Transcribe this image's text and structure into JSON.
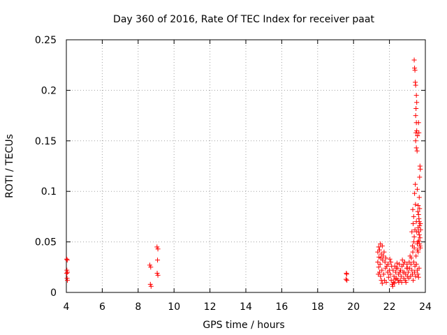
{
  "chart_data": {
    "type": "scatter",
    "title": "Day 360 of 2016, Rate Of TEC Index for receiver paat",
    "xlabel": "GPS time / hours",
    "ylabel": "ROTI / TECUs",
    "xlim": [
      4,
      24
    ],
    "ylim": [
      0,
      0.25
    ],
    "xticks": [
      "4",
      "6",
      "8",
      "10",
      "12",
      "14",
      "16",
      "18",
      "20",
      "22",
      "24"
    ],
    "yticks": [
      "0",
      "0.05",
      "0.1",
      "0.15",
      "0.2",
      "0.25"
    ],
    "grid": true,
    "marker": "+",
    "marker_color": "#ff0000",
    "series": [
      {
        "points": [
          [
            4.02,
            0.033
          ],
          [
            4.05,
            0.032
          ],
          [
            4.03,
            0.022
          ],
          [
            4.06,
            0.02
          ],
          [
            4.02,
            0.019
          ],
          [
            4.04,
            0.014
          ],
          [
            4.06,
            0.012
          ],
          [
            8.65,
            0.027
          ],
          [
            8.7,
            0.025
          ],
          [
            8.68,
            0.008
          ],
          [
            8.72,
            0.006
          ],
          [
            9.05,
            0.045
          ],
          [
            9.1,
            0.043
          ],
          [
            9.08,
            0.032
          ],
          [
            9.06,
            0.019
          ],
          [
            9.1,
            0.017
          ],
          [
            19.6,
            0.019
          ],
          [
            19.62,
            0.018
          ],
          [
            19.58,
            0.013
          ],
          [
            19.63,
            0.012
          ],
          [
            21.35,
            0.04
          ],
          [
            21.4,
            0.045
          ],
          [
            21.5,
            0.048
          ],
          [
            21.45,
            0.042
          ],
          [
            21.55,
            0.038
          ],
          [
            21.6,
            0.046
          ],
          [
            21.7,
            0.04
          ],
          [
            21.65,
            0.036
          ],
          [
            21.35,
            0.03
          ],
          [
            21.4,
            0.025
          ],
          [
            21.45,
            0.02
          ],
          [
            21.5,
            0.016
          ],
          [
            21.55,
            0.012
          ],
          [
            21.6,
            0.009
          ],
          [
            21.38,
            0.018
          ],
          [
            21.48,
            0.028
          ],
          [
            21.58,
            0.022
          ],
          [
            21.68,
            0.018
          ],
          [
            21.75,
            0.03
          ],
          [
            21.8,
            0.034
          ],
          [
            21.85,
            0.026
          ],
          [
            21.9,
            0.02
          ],
          [
            21.95,
            0.015
          ],
          [
            22.0,
            0.022
          ],
          [
            21.72,
            0.012
          ],
          [
            21.82,
            0.01
          ],
          [
            21.92,
            0.028
          ],
          [
            22.02,
            0.033
          ],
          [
            21.62,
            0.032
          ],
          [
            21.52,
            0.034
          ],
          [
            21.42,
            0.035
          ],
          [
            21.78,
            0.024
          ],
          [
            22.05,
            0.018
          ],
          [
            22.1,
            0.012
          ],
          [
            22.15,
            0.008
          ],
          [
            22.2,
            0.022
          ],
          [
            22.25,
            0.016
          ],
          [
            22.3,
            0.026
          ],
          [
            22.35,
            0.02
          ],
          [
            22.4,
            0.014
          ],
          [
            22.45,
            0.024
          ],
          [
            22.5,
            0.018
          ],
          [
            22.55,
            0.028
          ],
          [
            22.6,
            0.012
          ],
          [
            22.12,
            0.026
          ],
          [
            22.22,
            0.01
          ],
          [
            22.32,
            0.013
          ],
          [
            22.42,
            0.029
          ],
          [
            22.52,
            0.01
          ],
          [
            22.62,
            0.022
          ],
          [
            22.18,
            0.006
          ],
          [
            22.28,
            0.009
          ],
          [
            22.38,
            0.024
          ],
          [
            22.48,
            0.012
          ],
          [
            22.58,
            0.02
          ],
          [
            22.08,
            0.03
          ],
          [
            22.65,
            0.016
          ],
          [
            22.7,
            0.026
          ],
          [
            22.75,
            0.02
          ],
          [
            22.8,
            0.014
          ],
          [
            22.85,
            0.03
          ],
          [
            22.9,
            0.018
          ],
          [
            22.95,
            0.024
          ],
          [
            23.0,
            0.016
          ],
          [
            22.68,
            0.01
          ],
          [
            22.78,
            0.028
          ],
          [
            22.88,
            0.012
          ],
          [
            22.98,
            0.028
          ],
          [
            22.72,
            0.032
          ],
          [
            22.82,
            0.02
          ],
          [
            22.92,
            0.01
          ],
          [
            23.02,
            0.024
          ],
          [
            23.05,
            0.02
          ],
          [
            23.1,
            0.03
          ],
          [
            23.15,
            0.036
          ],
          [
            23.2,
            0.028
          ],
          [
            23.25,
            0.022
          ],
          [
            23.3,
            0.04
          ],
          [
            23.08,
            0.014
          ],
          [
            23.12,
            0.024
          ],
          [
            23.18,
            0.016
          ],
          [
            23.22,
            0.034
          ],
          [
            23.28,
            0.018
          ],
          [
            23.35,
            0.03
          ],
          [
            23.38,
            0.044
          ],
          [
            23.42,
            0.026
          ],
          [
            23.48,
            0.036
          ],
          [
            23.32,
            0.012
          ],
          [
            23.4,
            0.02
          ],
          [
            23.45,
            0.016
          ],
          [
            23.5,
            0.028
          ],
          [
            23.55,
            0.022
          ],
          [
            23.58,
            0.018
          ],
          [
            23.6,
            0.04
          ],
          [
            23.65,
            0.024
          ],
          [
            23.62,
            0.015
          ],
          [
            23.38,
            0.23
          ],
          [
            23.4,
            0.222
          ],
          [
            23.42,
            0.22
          ],
          [
            23.44,
            0.208
          ],
          [
            23.46,
            0.205
          ],
          [
            23.5,
            0.195
          ],
          [
            23.52,
            0.188
          ],
          [
            23.48,
            0.182
          ],
          [
            23.46,
            0.175
          ],
          [
            23.5,
            0.168
          ],
          [
            23.52,
            0.16
          ],
          [
            23.48,
            0.158
          ],
          [
            23.56,
            0.155
          ],
          [
            23.46,
            0.15
          ],
          [
            23.5,
            0.143
          ],
          [
            23.54,
            0.14
          ],
          [
            23.62,
            0.168
          ],
          [
            23.64,
            0.158
          ],
          [
            23.7,
            0.125
          ],
          [
            23.72,
            0.122
          ],
          [
            23.68,
            0.114
          ],
          [
            23.44,
            0.107
          ],
          [
            23.4,
            0.098
          ],
          [
            23.55,
            0.102
          ],
          [
            23.6,
            0.086
          ],
          [
            23.58,
            0.08
          ],
          [
            23.62,
            0.077
          ],
          [
            23.64,
            0.073
          ],
          [
            23.66,
            0.07
          ],
          [
            23.68,
            0.066
          ],
          [
            23.6,
            0.064
          ],
          [
            23.62,
            0.06
          ],
          [
            23.66,
            0.057
          ],
          [
            23.7,
            0.054
          ],
          [
            23.64,
            0.051
          ],
          [
            23.68,
            0.048
          ],
          [
            23.7,
            0.046
          ],
          [
            23.72,
            0.044
          ],
          [
            23.58,
            0.05
          ],
          [
            23.56,
            0.042
          ],
          [
            23.3,
            0.082
          ],
          [
            23.35,
            0.075
          ],
          [
            23.32,
            0.068
          ],
          [
            23.42,
            0.062
          ],
          [
            23.38,
            0.055
          ],
          [
            23.36,
            0.05
          ],
          [
            23.25,
            0.06
          ],
          [
            23.28,
            0.046
          ],
          [
            23.45,
            0.087
          ],
          [
            23.5,
            0.07
          ],
          [
            23.66,
            0.094
          ],
          [
            23.68,
            0.083
          ],
          [
            23.72,
            0.068
          ],
          [
            23.74,
            0.062
          ],
          [
            23.52,
            0.06
          ],
          [
            23.55,
            0.048
          ]
        ]
      }
    ]
  }
}
